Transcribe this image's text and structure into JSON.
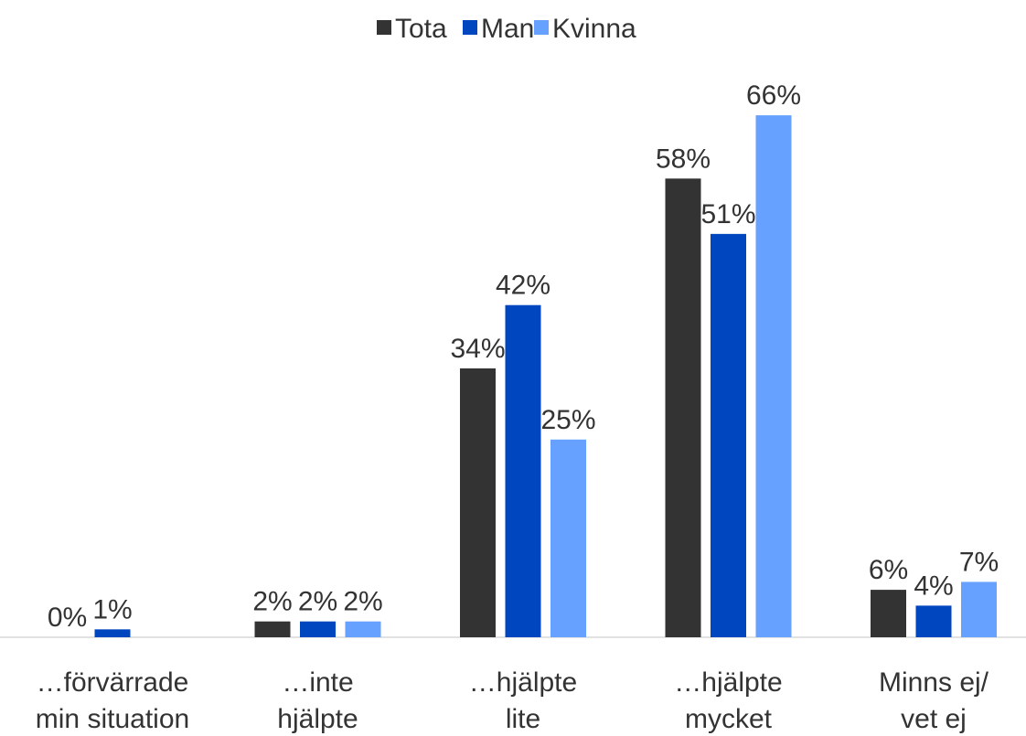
{
  "chart_data": {
    "type": "bar",
    "categories": [
      "…förvärrade\nmin situation",
      "…inte\nhjälpte",
      "…hjälpte\nlite",
      "…hjälpte\nmycket",
      "Minns ej/\nvet ej"
    ],
    "series": [
      {
        "name": "Tota",
        "color": "#333333",
        "values": [
          0,
          2,
          34,
          58,
          6
        ],
        "value_labels": [
          "0%",
          "2%",
          "34%",
          "58%",
          "6%"
        ]
      },
      {
        "name": "Man",
        "color": "#0046be",
        "values": [
          1,
          2,
          42,
          51,
          4
        ],
        "value_labels": [
          "1%",
          "2%",
          "42%",
          "51%",
          "4%"
        ]
      },
      {
        "name": "Kvinna",
        "color": "#66a1ff",
        "values": [
          null,
          2,
          25,
          66,
          7
        ],
        "value_labels": [
          null,
          "2%",
          "25%",
          "66%",
          "7%"
        ]
      }
    ],
    "legend": "top"
  }
}
